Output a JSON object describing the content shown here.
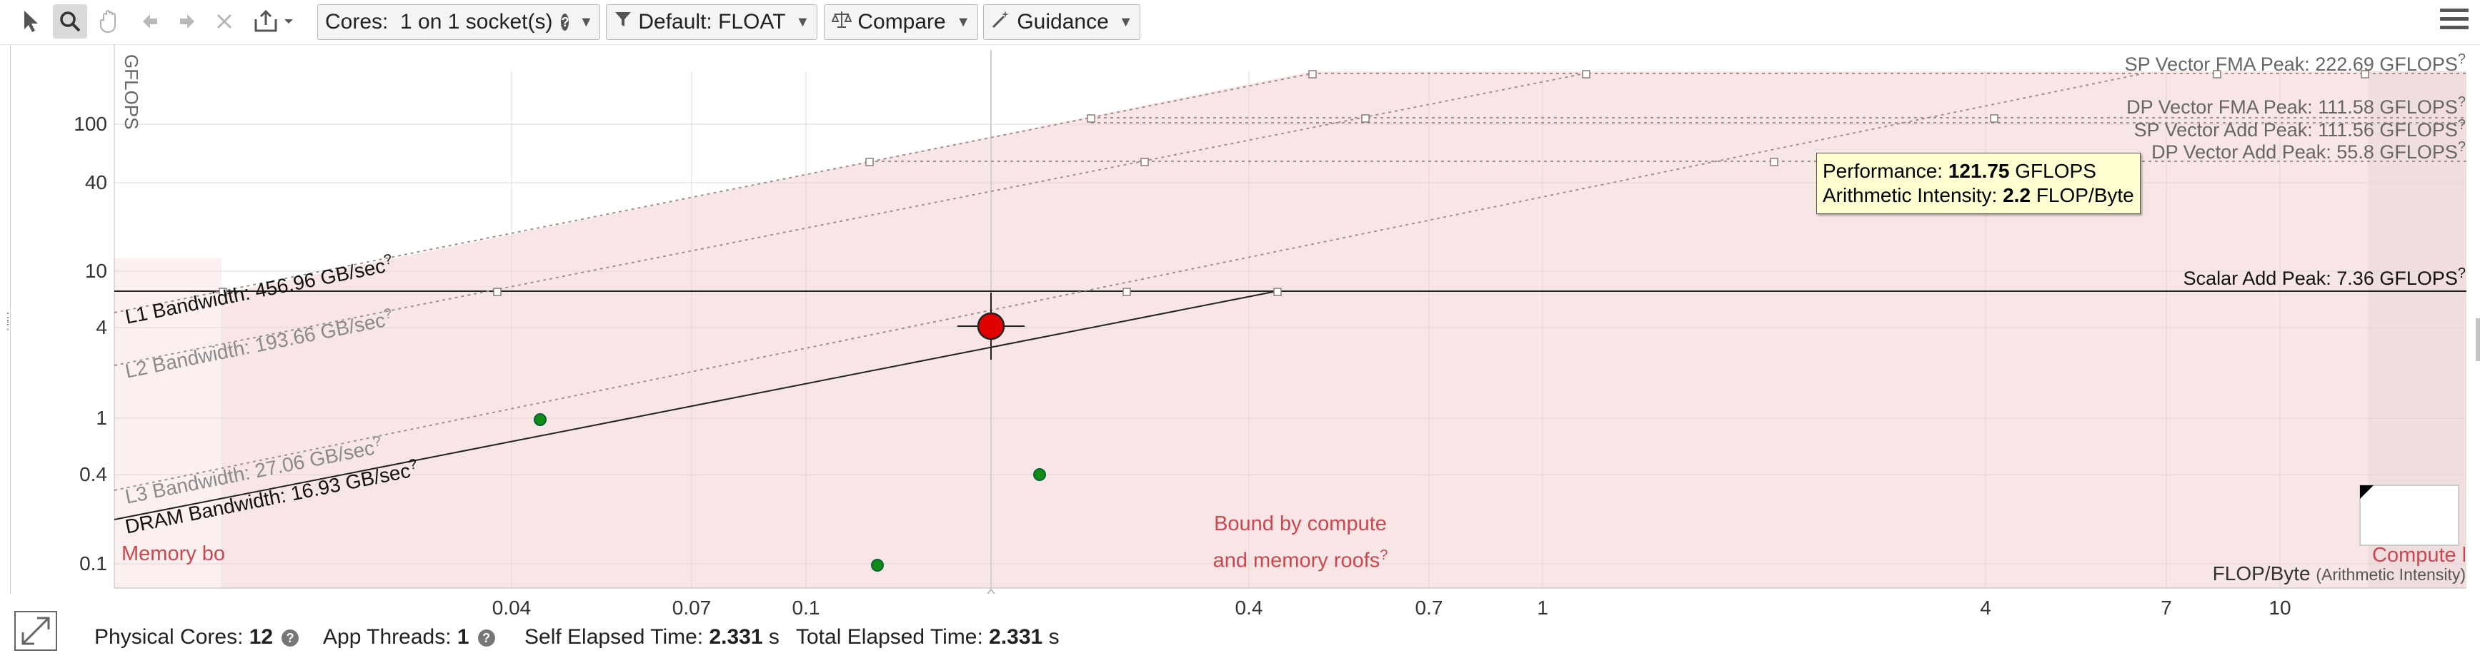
{
  "toolbar": {
    "cores_label": "Cores:",
    "cores_value": "1 on 1 socket(s)",
    "filter_value": "Default: FLOAT",
    "compare_label": "Compare",
    "guidance_label": "Guidance"
  },
  "chart": {
    "y_axis_label": "GFLOPS",
    "y_ticks": [
      "100",
      "40",
      "10",
      "4",
      "1",
      "0.4",
      "0.1"
    ],
    "x_ticks": [
      "0.04",
      "0.07",
      "0.1",
      "0.4",
      "0.7",
      "1",
      "4",
      "7",
      "10"
    ],
    "x_axis_label": "FLOP/Byte",
    "x_axis_sublabel": "(Arithmetic Intensity)",
    "roofs": {
      "sp_fma": "SP Vector FMA Peak: 222.69 GFLOPS",
      "dp_fma": "DP Vector FMA Peak: 111.58 GFLOPS",
      "sp_add": "SP Vector Add Peak: 111.56 GFLOPS",
      "dp_add": "DP Vector Add Peak: 55.8 GFLOPS",
      "scalar_add": "Scalar Add Peak: 7.36 GFLOPS"
    },
    "bandwidths": {
      "l1": "L1 Bandwidth: 456.96 GB/sec",
      "l2": "L2 Bandwidth: 193.66 GB/sec",
      "l3": "L3 Bandwidth: 27.06 GB/sec",
      "dram": "DRAM Bandwidth: 16.93 GB/sec"
    },
    "help_mark": "?",
    "region_memory": "Memory bo",
    "region_both_1": "Bound by compute",
    "region_both_2": "and memory roofs",
    "region_compute": "Compute b",
    "tooltip": {
      "perf_label": "Performance:",
      "perf_value": "121.75",
      "perf_unit": "GFLOPS",
      "ai_label": "Arithmetic Intensity:",
      "ai_value": "2.2",
      "ai_unit": "FLOP/Byte"
    }
  },
  "status": {
    "physical_cores_label": "Physical Cores:",
    "physical_cores_value": "12",
    "app_threads_label": "App Threads:",
    "app_threads_value": "1",
    "self_elapsed_label": "Self Elapsed Time:",
    "self_elapsed_value": "2.331",
    "self_elapsed_unit": "s",
    "total_elapsed_label": "Total Elapsed Time:",
    "total_elapsed_value": "2.331",
    "total_elapsed_unit": "s"
  },
  "colors": {
    "bound_region": "#f8e6e6",
    "selected_point": "#e00000",
    "loop_point": "#138a13",
    "tooltip_bg": "#ffffd2",
    "region_text": "#c8484f"
  }
}
